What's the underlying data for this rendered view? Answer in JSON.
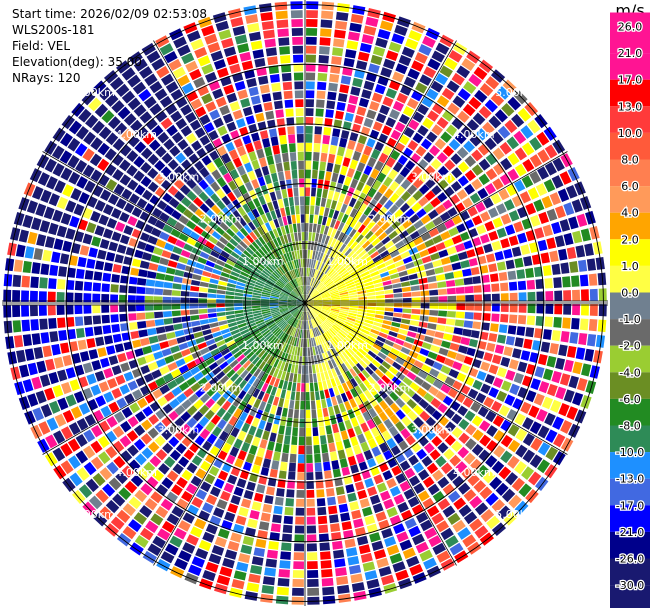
{
  "header": {
    "start_time": "Start time: 2026/02/09 02:53:08",
    "instrument": "WLS200s-181",
    "field": "Field: VEL",
    "elevation": "Elevation(deg): 35.00",
    "nrays": "NRays: 120"
  },
  "chart_data": {
    "type": "heatmap",
    "projection": "polar-ppi",
    "field": "VEL",
    "units_label": "m/s",
    "nrays": 120,
    "elevation_deg": 35.0,
    "max_range_km": 5.0,
    "range_rings_km": [
      1,
      2,
      3,
      4,
      5
    ],
    "ring_labels": [
      "1.00km",
      "2.00km",
      "3.00km",
      "4.00km",
      "5.00km"
    ],
    "spokes_deg": [
      0,
      30,
      60,
      90,
      120,
      150,
      180,
      210,
      240,
      270,
      300,
      330
    ],
    "colorbar": {
      "tick_labels": [
        "26.0",
        "21.0",
        "17.0",
        "13.0",
        "10.0",
        "8.0",
        "6.0",
        "4.0",
        "2.0",
        "1.0",
        "0.0",
        "-1.0",
        "-2.0",
        "-4.0",
        "-6.0",
        "-8.0",
        "-10.0",
        "-13.0",
        "-17.0",
        "-21.0",
        "-26.0",
        "-30.0"
      ],
      "colors": [
        "#ff1493",
        "#ff1493",
        "#ff0000",
        "#ff3a3a",
        "#ff5a3a",
        "#ff7f50",
        "#ff9a5a",
        "#ffa500",
        "#ffff00",
        "#ffff44",
        "#708090",
        "#6a6a6a",
        "#9acd32",
        "#6b8e23",
        "#228b22",
        "#2e8b57",
        "#1e90ff",
        "#4169e1",
        "#0000ff",
        "#00008b",
        "#191970",
        "#191970"
      ]
    }
  }
}
